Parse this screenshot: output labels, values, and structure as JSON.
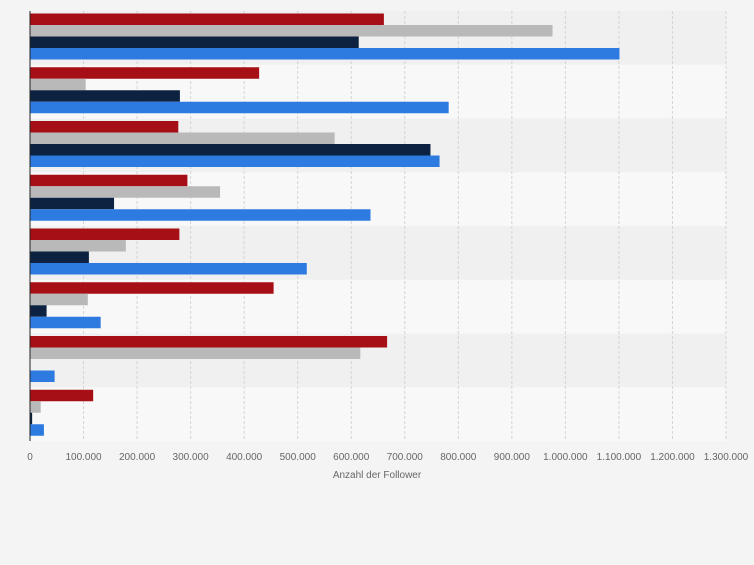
{
  "chart_data": {
    "type": "bar",
    "orientation": "horizontal",
    "categories": [
      "",
      "",
      "",
      "",
      "",
      "",
      "",
      ""
    ],
    "series": [
      {
        "color": "#a50f15",
        "values": [
          661000,
          428000,
          277000,
          294000,
          279000,
          455000,
          667000,
          118000
        ]
      },
      {
        "color": "#b9b9b9",
        "values": [
          976000,
          104000,
          569000,
          355000,
          179000,
          108000,
          617000,
          20000
        ]
      },
      {
        "color": "#0d2240",
        "values": [
          614000,
          280000,
          748000,
          157000,
          110000,
          31000,
          0,
          4000
        ]
      },
      {
        "color": "#2d7be0",
        "values": [
          1101000,
          782000,
          765000,
          636000,
          517000,
          132000,
          46000,
          26000
        ]
      }
    ],
    "xlim": [
      0,
      1300000
    ],
    "xticks": [
      "0",
      "100.000",
      "200.000",
      "300.000",
      "400.000",
      "500.000",
      "600.000",
      "700.000",
      "800.000",
      "900.000",
      "1.000.000",
      "1.100.000",
      "1.200.000",
      "1.300.000"
    ],
    "xlabel": "Anzahl der Follower",
    "grid": true
  }
}
